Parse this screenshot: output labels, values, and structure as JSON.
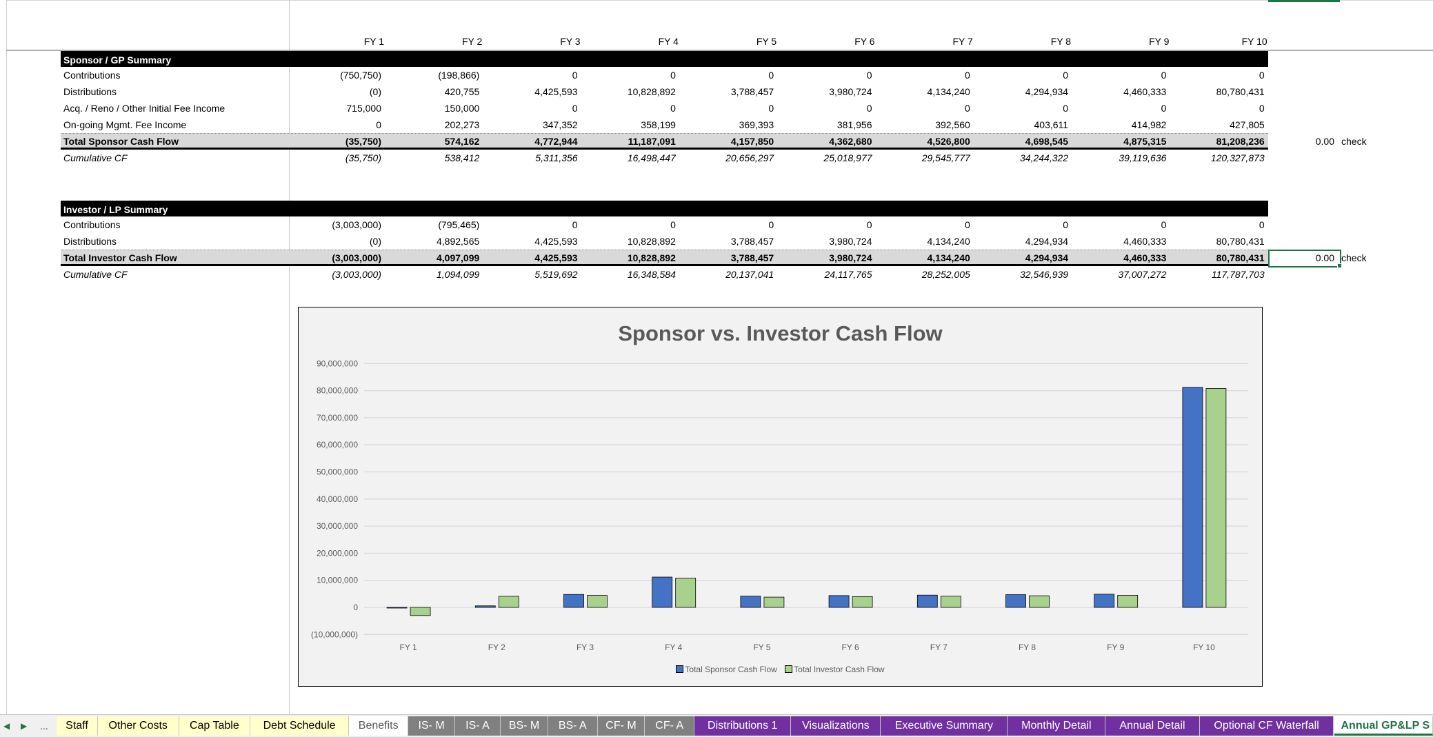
{
  "columns": [
    "FY 1",
    "FY 2",
    "FY 3",
    "FY 4",
    "FY 5",
    "FY 6",
    "FY 7",
    "FY 8",
    "FY 9",
    "FY 10"
  ],
  "sponsor": {
    "title": "Sponsor / GP Summary",
    "rows": [
      {
        "label": "Contributions",
        "style": "normal",
        "values": [
          "(750,750)",
          "(198,866)",
          "0",
          "0",
          "0",
          "0",
          "0",
          "0",
          "0",
          "0"
        ]
      },
      {
        "label": "Distributions",
        "style": "normal",
        "values": [
          "(0)",
          "420,755",
          "4,425,593",
          "10,828,892",
          "3,788,457",
          "3,980,724",
          "4,134,240",
          "4,294,934",
          "4,460,333",
          "80,780,431"
        ]
      },
      {
        "label": "Acq. / Reno / Other Initial Fee Income",
        "style": "normal",
        "values": [
          "715,000",
          "150,000",
          "0",
          "0",
          "0",
          "0",
          "0",
          "0",
          "0",
          "0"
        ]
      },
      {
        "label": "On-going Mgmt. Fee Income",
        "style": "normal",
        "values": [
          "0",
          "202,273",
          "347,352",
          "358,199",
          "369,393",
          "381,956",
          "392,560",
          "403,611",
          "414,982",
          "427,805"
        ]
      },
      {
        "label": "Total Sponsor Cash Flow",
        "style": "total",
        "values": [
          "(35,750)",
          "574,162",
          "4,772,944",
          "11,187,091",
          "4,157,850",
          "4,362,680",
          "4,526,800",
          "4,698,545",
          "4,875,315",
          "81,208,236"
        ]
      },
      {
        "label": "Cumulative CF",
        "style": "cum",
        "values": [
          "(35,750)",
          "538,412",
          "5,311,356",
          "16,498,447",
          "20,656,297",
          "25,018,977",
          "29,545,777",
          "34,244,322",
          "39,119,636",
          "120,327,873"
        ]
      }
    ],
    "check_value": "0.00",
    "check_label": "check"
  },
  "investor": {
    "title": "Investor / LP Summary",
    "rows": [
      {
        "label": "Contributions",
        "style": "normal",
        "values": [
          "(3,003,000)",
          "(795,465)",
          "0",
          "0",
          "0",
          "0",
          "0",
          "0",
          "0",
          "0"
        ]
      },
      {
        "label": "Distributions",
        "style": "normal",
        "values": [
          "(0)",
          "4,892,565",
          "4,425,593",
          "10,828,892",
          "3,788,457",
          "3,980,724",
          "4,134,240",
          "4,294,934",
          "4,460,333",
          "80,780,431"
        ]
      },
      {
        "label": "Total Investor Cash Flow",
        "style": "total",
        "values": [
          "(3,003,000)",
          "4,097,099",
          "4,425,593",
          "10,828,892",
          "3,788,457",
          "3,980,724",
          "4,134,240",
          "4,294,934",
          "4,460,333",
          "80,780,431"
        ]
      },
      {
        "label": "Cumulative CF",
        "style": "cum",
        "values": [
          "(3,003,000)",
          "1,094,099",
          "5,519,692",
          "16,348,584",
          "20,137,041",
          "24,117,765",
          "28,252,005",
          "32,546,939",
          "37,007,272",
          "117,787,703"
        ]
      }
    ],
    "check_value": "0.00",
    "check_label": "check"
  },
  "chart_data": {
    "type": "bar",
    "title": "Sponsor vs. Investor Cash Flow",
    "xlabel": "",
    "ylabel": "",
    "categories": [
      "FY 1",
      "FY 2",
      "FY 3",
      "FY 4",
      "FY 5",
      "FY 6",
      "FY 7",
      "FY 8",
      "FY 9",
      "FY 10"
    ],
    "series": [
      {
        "name": "Total Sponsor Cash Flow",
        "color": "#4472c4",
        "values": [
          -35750,
          574162,
          4772944,
          11187091,
          4157850,
          4362680,
          4526800,
          4698545,
          4875315,
          81208236
        ]
      },
      {
        "name": "Total Investor Cash Flow",
        "color": "#a9d18e",
        "values": [
          -3003000,
          4097099,
          4425593,
          10828892,
          3788457,
          3980724,
          4134240,
          4294934,
          4460333,
          80780431
        ]
      }
    ],
    "ylim": [
      -10000000,
      90000000
    ],
    "yticks": [
      -10000000,
      0,
      10000000,
      20000000,
      30000000,
      40000000,
      50000000,
      60000000,
      70000000,
      80000000,
      90000000
    ],
    "ytick_labels": [
      "(10,000,000)",
      "0",
      "10,000,000",
      "20,000,000",
      "30,000,000",
      "40,000,000",
      "50,000,000",
      "60,000,000",
      "70,000,000",
      "80,000,000",
      "90,000,000"
    ],
    "grid": true,
    "legend": "bottom"
  },
  "sheet_tabs": [
    {
      "label": "Staff",
      "color": "#ffffcc",
      "text": "#000000"
    },
    {
      "label": "Other Costs",
      "color": "#ffffcc",
      "text": "#000000"
    },
    {
      "label": "Cap Table",
      "color": "#ffffcc",
      "text": "#000000"
    },
    {
      "label": "Debt Schedule",
      "color": "#ffffcc",
      "text": "#000000"
    },
    {
      "label": "Benefits",
      "color": "#ffffff",
      "text": "#595959"
    },
    {
      "label": "IS- M",
      "color": "#808080",
      "text": "#ffffff"
    },
    {
      "label": "IS- A",
      "color": "#808080",
      "text": "#ffffff"
    },
    {
      "label": "BS- M",
      "color": "#808080",
      "text": "#ffffff"
    },
    {
      "label": "BS- A",
      "color": "#808080",
      "text": "#ffffff"
    },
    {
      "label": "CF- M",
      "color": "#808080",
      "text": "#ffffff"
    },
    {
      "label": "CF- A",
      "color": "#808080",
      "text": "#ffffff"
    },
    {
      "label": "Distributions 1",
      "color": "#7030a0",
      "text": "#ffffff"
    },
    {
      "label": "Visualizations",
      "color": "#7030a0",
      "text": "#ffffff"
    },
    {
      "label": "Executive Summary",
      "color": "#7030a0",
      "text": "#ffffff"
    },
    {
      "label": "Monthly Detail",
      "color": "#7030a0",
      "text": "#ffffff"
    },
    {
      "label": "Annual Detail",
      "color": "#7030a0",
      "text": "#ffffff"
    },
    {
      "label": "Optional CF Waterfall",
      "color": "#7030a0",
      "text": "#ffffff"
    },
    {
      "label": "Annual GP&LP S",
      "color": "#ffffff",
      "text": "#217346",
      "active": true
    }
  ],
  "tab_nav": {
    "prev": "◀",
    "next": "▶",
    "more": "..."
  }
}
